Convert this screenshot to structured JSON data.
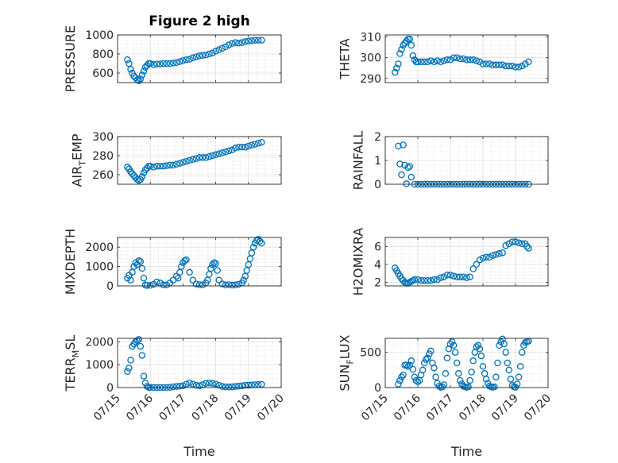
{
  "figure": {
    "title": "Figure 2 high",
    "marker_color": "#0072BD"
  },
  "chart_data": [
    {
      "type": "scatter",
      "title": "Figure 2 high",
      "ylabel": "PRESSURE",
      "xlabel": "",
      "xlim": [
        15,
        20
      ],
      "xticks": [
        "07/15",
        "07/16",
        "07/17",
        "07/18",
        "07/19",
        "07/20"
      ],
      "ylim": [
        500,
        1000
      ],
      "yticks": [
        600,
        800,
        1000
      ],
      "grid": true,
      "x": [
        15.3,
        15.35,
        15.4,
        15.45,
        15.5,
        15.55,
        15.6,
        15.65,
        15.7,
        15.75,
        15.8,
        15.85,
        15.9,
        15.95,
        16.0,
        16.1,
        16.2,
        16.3,
        16.4,
        16.5,
        16.6,
        16.7,
        16.8,
        16.9,
        17.0,
        17.1,
        17.2,
        17.3,
        17.4,
        17.5,
        17.6,
        17.7,
        17.8,
        17.9,
        18.0,
        18.1,
        18.2,
        18.3,
        18.4,
        18.5,
        18.6,
        18.7,
        18.8,
        18.9,
        19.0,
        19.1,
        19.2,
        19.3,
        19.4
      ],
      "y": [
        740,
        700,
        640,
        600,
        570,
        550,
        530,
        520,
        540,
        580,
        620,
        660,
        680,
        700,
        700,
        690,
        695,
        695,
        700,
        700,
        700,
        705,
        710,
        720,
        730,
        740,
        745,
        760,
        770,
        780,
        785,
        790,
        800,
        810,
        830,
        845,
        860,
        875,
        895,
        910,
        920,
        915,
        920,
        930,
        935,
        940,
        945,
        945,
        945
      ]
    },
    {
      "type": "scatter",
      "ylabel": "THETA",
      "xlabel": "",
      "xlim": [
        15,
        20
      ],
      "xticks": [
        "07/15",
        "07/16",
        "07/17",
        "07/18",
        "07/19",
        "07/20"
      ],
      "ylim": [
        288,
        311
      ],
      "yticks": [
        290,
        300,
        310
      ],
      "grid": true,
      "x": [
        15.3,
        15.35,
        15.4,
        15.45,
        15.5,
        15.55,
        15.6,
        15.65,
        15.7,
        15.75,
        15.8,
        15.85,
        15.9,
        15.95,
        16.0,
        16.1,
        16.2,
        16.3,
        16.4,
        16.5,
        16.6,
        16.7,
        16.8,
        16.9,
        17.0,
        17.1,
        17.2,
        17.3,
        17.4,
        17.5,
        17.6,
        17.7,
        17.8,
        17.9,
        18.0,
        18.1,
        18.2,
        18.3,
        18.4,
        18.5,
        18.6,
        18.7,
        18.8,
        18.9,
        19.0,
        19.1,
        19.2,
        19.3,
        19.4
      ],
      "y": [
        293,
        295,
        297,
        302,
        304,
        306,
        307,
        308,
        309,
        309,
        306,
        301,
        299,
        298,
        298,
        298,
        298,
        298,
        298.5,
        298,
        298.5,
        298,
        298.5,
        299,
        299,
        300,
        300,
        299.5,
        299.5,
        299,
        299,
        299,
        298.5,
        298,
        297,
        297,
        297,
        296.5,
        296.5,
        296.5,
        296.5,
        296,
        296,
        296,
        295.5,
        295.5,
        296,
        297,
        298
      ]
    },
    {
      "type": "scatter",
      "ylabel": "AIR_TEMP",
      "xlabel": "",
      "xlim": [
        15,
        20
      ],
      "xticks": [
        "07/15",
        "07/16",
        "07/17",
        "07/18",
        "07/19",
        "07/20"
      ],
      "ylim": [
        250,
        300
      ],
      "yticks": [
        260,
        280,
        300
      ],
      "grid": true,
      "x": [
        15.3,
        15.35,
        15.4,
        15.45,
        15.5,
        15.55,
        15.6,
        15.65,
        15.7,
        15.75,
        15.8,
        15.85,
        15.9,
        15.95,
        16.0,
        16.1,
        16.2,
        16.3,
        16.4,
        16.5,
        16.6,
        16.7,
        16.8,
        16.9,
        17.0,
        17.1,
        17.2,
        17.3,
        17.4,
        17.5,
        17.6,
        17.7,
        17.8,
        17.9,
        18.0,
        18.1,
        18.2,
        18.3,
        18.4,
        18.5,
        18.6,
        18.7,
        18.8,
        18.9,
        19.0,
        19.1,
        19.2,
        19.3,
        19.4
      ],
      "y": [
        268,
        266,
        263,
        261,
        259,
        257,
        255,
        254,
        255,
        258,
        262,
        265,
        267,
        269,
        269,
        268,
        269,
        269,
        269,
        269.5,
        270,
        270,
        271,
        272,
        273,
        274,
        275,
        276,
        277,
        278,
        278,
        278,
        279,
        280,
        281,
        282,
        283,
        284,
        285,
        286,
        288,
        289,
        289,
        289,
        290,
        291,
        292,
        293,
        294
      ]
    },
    {
      "type": "scatter",
      "ylabel": "RAINFALL",
      "xlabel": "",
      "xlim": [
        15,
        20
      ],
      "xticks": [
        "07/15",
        "07/16",
        "07/17",
        "07/18",
        "07/19",
        "07/20"
      ],
      "ylim": [
        0,
        2
      ],
      "yticks": [
        0,
        1,
        2
      ],
      "grid": true,
      "x": [
        15.4,
        15.45,
        15.5,
        15.55,
        15.6,
        15.65,
        15.7,
        15.75,
        15.8,
        15.9,
        16.0,
        16.1,
        16.2,
        16.3,
        16.4,
        16.5,
        16.6,
        16.7,
        16.8,
        16.9,
        17.0,
        17.1,
        17.2,
        17.3,
        17.4,
        17.5,
        17.6,
        17.7,
        17.8,
        17.9,
        18.0,
        18.1,
        18.2,
        18.3,
        18.4,
        18.5,
        18.6,
        18.7,
        18.8,
        18.9,
        19.0,
        19.1,
        19.2,
        19.3,
        19.4
      ],
      "y": [
        1.6,
        0.85,
        0.4,
        1.65,
        0.8,
        0.02,
        0.7,
        0.75,
        0.3,
        0,
        0,
        0,
        0,
        0,
        0,
        0,
        0,
        0,
        0,
        0,
        0,
        0,
        0,
        0,
        0,
        0,
        0,
        0,
        0,
        0,
        0,
        0,
        0,
        0,
        0,
        0,
        0,
        0,
        0,
        0,
        0,
        0,
        0,
        0,
        0
      ]
    },
    {
      "type": "scatter",
      "ylabel": "MIXDEPTH",
      "xlabel": "",
      "xlim": [
        15,
        20
      ],
      "xticks": [
        "07/15",
        "07/16",
        "07/17",
        "07/18",
        "07/19",
        "07/20"
      ],
      "ylim": [
        0,
        2500
      ],
      "yticks": [
        0,
        1000,
        2000
      ],
      "grid": true,
      "x": [
        15.3,
        15.35,
        15.4,
        15.45,
        15.5,
        15.55,
        15.6,
        15.65,
        15.7,
        15.75,
        15.8,
        15.85,
        15.9,
        16.0,
        16.1,
        16.2,
        16.3,
        16.4,
        16.5,
        16.6,
        16.7,
        16.8,
        16.85,
        16.9,
        16.95,
        17.0,
        17.05,
        17.1,
        17.2,
        17.3,
        17.4,
        17.5,
        17.6,
        17.7,
        17.75,
        17.8,
        17.85,
        17.9,
        17.95,
        18.0,
        18.05,
        18.1,
        18.2,
        18.3,
        18.4,
        18.5,
        18.6,
        18.7,
        18.8,
        18.85,
        18.9,
        18.95,
        19.0,
        19.05,
        19.1,
        19.15,
        19.2,
        19.25,
        19.3,
        19.35,
        19.4
      ],
      "y": [
        400,
        550,
        300,
        700,
        1000,
        1200,
        1100,
        1300,
        1250,
        900,
        400,
        50,
        20,
        30,
        80,
        200,
        150,
        50,
        50,
        150,
        300,
        500,
        400,
        700,
        1000,
        1200,
        1300,
        1350,
        700,
        300,
        100,
        60,
        50,
        150,
        300,
        600,
        900,
        1100,
        1200,
        1150,
        800,
        300,
        100,
        50,
        60,
        40,
        50,
        80,
        150,
        300,
        500,
        800,
        1100,
        1400,
        1700,
        2000,
        2200,
        2350,
        2400,
        2300,
        2200
      ]
    },
    {
      "type": "scatter",
      "ylabel": "H2OMIXRA",
      "xlabel": "",
      "xlim": [
        15,
        20
      ],
      "xticks": [
        "07/15",
        "07/16",
        "07/17",
        "07/18",
        "07/19",
        "07/20"
      ],
      "ylim": [
        1.6,
        7
      ],
      "yticks": [
        2,
        4,
        6
      ],
      "grid": true,
      "x": [
        15.3,
        15.35,
        15.4,
        15.45,
        15.5,
        15.55,
        15.6,
        15.65,
        15.7,
        15.75,
        15.8,
        15.85,
        15.9,
        16.0,
        16.1,
        16.2,
        16.3,
        16.4,
        16.5,
        16.6,
        16.7,
        16.8,
        16.9,
        17.0,
        17.1,
        17.2,
        17.3,
        17.4,
        17.5,
        17.6,
        17.7,
        17.8,
        17.9,
        18.0,
        18.1,
        18.2,
        18.3,
        18.4,
        18.5,
        18.6,
        18.7,
        18.8,
        18.9,
        19.0,
        19.1,
        19.2,
        19.3,
        19.35,
        19.4
      ],
      "y": [
        3.6,
        3.3,
        3.0,
        2.7,
        2.4,
        2.2,
        2.0,
        1.9,
        1.9,
        2.0,
        2.1,
        2.2,
        2.3,
        2.3,
        2.2,
        2.2,
        2.2,
        2.2,
        2.3,
        2.3,
        2.5,
        2.6,
        2.8,
        2.8,
        2.7,
        2.6,
        2.6,
        2.6,
        2.5,
        2.6,
        3.5,
        4.0,
        4.5,
        4.7,
        4.8,
        4.8,
        5.0,
        5.1,
        5.2,
        5.3,
        6.1,
        6.3,
        6.5,
        6.5,
        6.4,
        6.3,
        6.3,
        6.0,
        5.8
      ]
    },
    {
      "type": "scatter",
      "ylabel": "TERR_MSL",
      "xlabel": "Time",
      "xlim": [
        15,
        20
      ],
      "xticks": [
        "07/15",
        "07/16",
        "07/17",
        "07/18",
        "07/19",
        "07/20"
      ],
      "ylim": [
        0,
        2150
      ],
      "yticks": [
        0,
        1000,
        2000
      ],
      "grid": true,
      "x": [
        15.3,
        15.35,
        15.4,
        15.45,
        15.5,
        15.55,
        15.6,
        15.65,
        15.7,
        15.75,
        15.8,
        15.85,
        15.9,
        15.95,
        16.0,
        16.1,
        16.2,
        16.3,
        16.4,
        16.5,
        16.6,
        16.7,
        16.8,
        16.9,
        17.0,
        17.1,
        17.2,
        17.3,
        17.4,
        17.5,
        17.6,
        17.7,
        17.8,
        17.9,
        18.0,
        18.1,
        18.2,
        18.3,
        18.4,
        18.5,
        18.6,
        18.7,
        18.8,
        18.9,
        19.0,
        19.1,
        19.2,
        19.3,
        19.4
      ],
      "y": [
        700,
        850,
        1200,
        1800,
        1900,
        2000,
        2050,
        2100,
        1800,
        1400,
        500,
        200,
        50,
        10,
        5,
        0,
        0,
        0,
        0,
        0,
        10,
        30,
        50,
        60,
        80,
        150,
        200,
        150,
        100,
        80,
        120,
        180,
        200,
        180,
        150,
        100,
        50,
        30,
        20,
        30,
        50,
        60,
        80,
        100,
        100,
        110,
        120,
        130,
        140
      ]
    },
    {
      "type": "scatter",
      "ylabel": "SUN_FLUX",
      "xlabel": "Time",
      "xlim": [
        15,
        20
      ],
      "xticks": [
        "07/15",
        "07/16",
        "07/17",
        "07/18",
        "07/19",
        "07/20"
      ],
      "ylim": [
        0,
        700
      ],
      "yticks": [
        0,
        500
      ],
      "grid": true,
      "x": [
        15.4,
        15.45,
        15.5,
        15.55,
        15.6,
        15.65,
        15.7,
        15.75,
        15.8,
        15.85,
        15.9,
        15.95,
        16.0,
        16.05,
        16.1,
        16.15,
        16.2,
        16.25,
        16.3,
        16.35,
        16.4,
        16.45,
        16.5,
        16.55,
        16.6,
        16.65,
        16.7,
        16.75,
        16.8,
        16.85,
        16.9,
        16.95,
        17.0,
        17.05,
        17.1,
        17.15,
        17.2,
        17.25,
        17.3,
        17.35,
        17.4,
        17.45,
        17.5,
        17.55,
        17.6,
        17.65,
        17.7,
        17.75,
        17.8,
        17.85,
        17.9,
        17.95,
        18.0,
        18.05,
        18.1,
        18.15,
        18.2,
        18.25,
        18.3,
        18.35,
        18.4,
        18.45,
        18.5,
        18.55,
        18.6,
        18.65,
        18.7,
        18.75,
        18.8,
        18.85,
        18.9,
        18.95,
        19.0,
        19.05,
        19.1,
        19.15,
        19.2,
        19.25,
        19.3,
        19.35,
        19.4
      ],
      "y": [
        50,
        100,
        150,
        180,
        320,
        320,
        300,
        320,
        380,
        260,
        150,
        100,
        80,
        100,
        180,
        250,
        350,
        400,
        420,
        480,
        520,
        350,
        280,
        150,
        60,
        20,
        5,
        10,
        40,
        200,
        420,
        550,
        620,
        650,
        600,
        500,
        350,
        200,
        100,
        50,
        20,
        10,
        5,
        10,
        100,
        220,
        380,
        500,
        580,
        600,
        550,
        450,
        300,
        200,
        120,
        60,
        20,
        10,
        5,
        10,
        150,
        350,
        600,
        650,
        690,
        620,
        500,
        350,
        250,
        120,
        30,
        10,
        5,
        50,
        150,
        300,
        500,
        600,
        640,
        650,
        660
      ]
    }
  ]
}
